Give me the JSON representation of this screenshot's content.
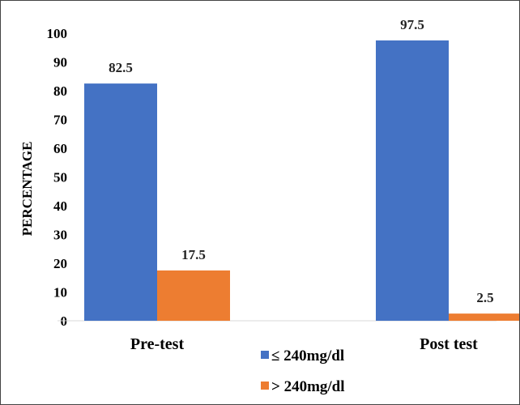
{
  "chart_data": {
    "type": "bar",
    "categories": [
      "Pre-test",
      "Post test"
    ],
    "series": [
      {
        "name": "≤ 240mg/dl",
        "values": [
          82.5,
          97.5
        ],
        "color": "#4472C4"
      },
      {
        "name": "> 240mg/dl",
        "values": [
          17.5,
          2.5
        ],
        "color": "#ED7D31"
      }
    ],
    "data_labels": [
      [
        "82.5",
        "97.5"
      ],
      [
        "17.5",
        "2.5"
      ]
    ],
    "ylabel": "PERCENTAGE",
    "xlabel": "",
    "ylim": [
      0,
      100
    ],
    "yticks": [
      0,
      10,
      20,
      30,
      40,
      50,
      60,
      70,
      80,
      90,
      100
    ],
    "grid": false,
    "legend_position": "bottom-center"
  }
}
